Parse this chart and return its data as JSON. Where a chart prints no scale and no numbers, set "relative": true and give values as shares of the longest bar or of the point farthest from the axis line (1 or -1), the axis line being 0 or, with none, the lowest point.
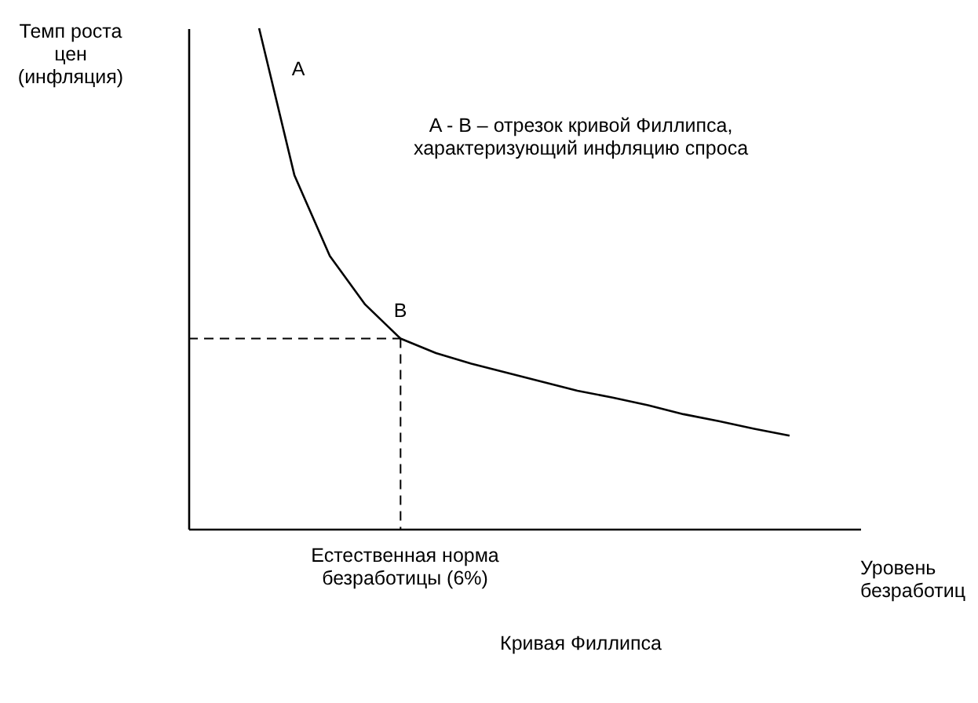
{
  "chart_data": {
    "type": "line",
    "relative": true,
    "title": "Кривая Филлипса",
    "xlabel": "Уровень\nбезработиц",
    "ylabel": "Темп роста\nцен\n(инфляция)",
    "categories": [
      null,
      null,
      null,
      null,
      null,
      null,
      null,
      null,
      null,
      null,
      null,
      null,
      null,
      null,
      null,
      null,
      null,
      null,
      null,
      null
    ],
    "series": [
      {
        "color": "#000000",
        "values": [
          null,
          null,
          1,
          0.706,
          0.545,
          0.448,
          0.38,
          0.351,
          0.33,
          0.312,
          0.294,
          0.276,
          0.262,
          0.247,
          0.229,
          0.215,
          0.2,
          0.186,
          null,
          null
        ]
      }
    ],
    "ref_lines": [
      {
        "axis": "y",
        "value": 0.38,
        "line_style": "dashed",
        "color": "#000000"
      }
    ],
    "annotations": [
      "A",
      "B",
      "A - B – отрезок кривой Филлипса,\nхарактеризующий инфляцию  спроса",
      "Естественная норма\nбезработицы (6%)"
    ],
    "marker": "none",
    "line_style": "solid"
  }
}
